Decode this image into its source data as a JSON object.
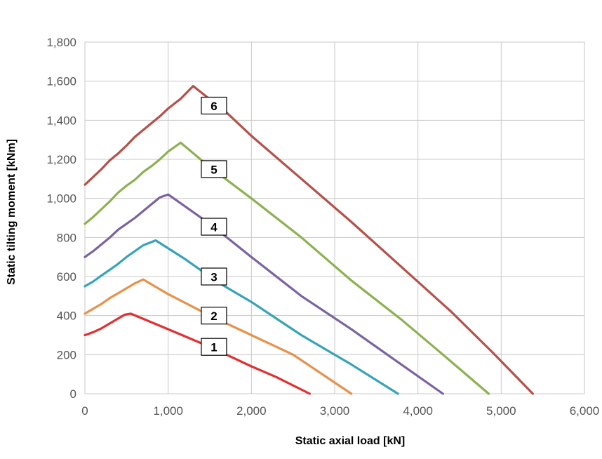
{
  "chart_data": {
    "type": "line",
    "xlabel": "Static axial load [kN]",
    "ylabel": "Static tilting moment [kNm]",
    "xlim": [
      0,
      6000
    ],
    "ylim": [
      0,
      1800
    ],
    "xticks": [
      0,
      1000,
      2000,
      3000,
      4000,
      5000,
      6000
    ],
    "yticks": [
      0,
      200,
      400,
      600,
      800,
      1000,
      1200,
      1400,
      1600,
      1800
    ],
    "xtick_labels": [
      "0",
      "1,000",
      "2,000",
      "3,000",
      "4,000",
      "5,000",
      "6,000"
    ],
    "ytick_labels": [
      "0",
      "200",
      "400",
      "600",
      "800",
      "1,000",
      "1,200",
      "1,400",
      "1,600",
      "1,800"
    ],
    "grid": true,
    "legend": "none",
    "colors": {
      "grid": "#c8c8c8",
      "frame": "#c8c8c8"
    },
    "series": [
      {
        "name": "1",
        "color": "#e03030",
        "label_point": [
          1550,
          240
        ],
        "points": [
          [
            0,
            300
          ],
          [
            100,
            315
          ],
          [
            200,
            335
          ],
          [
            300,
            360
          ],
          [
            400,
            385
          ],
          [
            480,
            405
          ],
          [
            550,
            410
          ],
          [
            1000,
            330
          ],
          [
            1500,
            240
          ],
          [
            2000,
            140
          ],
          [
            2300,
            85
          ],
          [
            2700,
            0
          ]
        ]
      },
      {
        "name": "2",
        "color": "#e8914a",
        "label_point": [
          1550,
          400
        ],
        "points": [
          [
            0,
            410
          ],
          [
            100,
            435
          ],
          [
            200,
            460
          ],
          [
            300,
            490
          ],
          [
            400,
            515
          ],
          [
            500,
            540
          ],
          [
            600,
            565
          ],
          [
            700,
            585
          ],
          [
            1000,
            510
          ],
          [
            1500,
            400
          ],
          [
            2000,
            300
          ],
          [
            2500,
            200
          ],
          [
            3200,
            0
          ]
        ]
      },
      {
        "name": "3",
        "color": "#36a3b8",
        "label_point": [
          1550,
          600
        ],
        "points": [
          [
            0,
            550
          ],
          [
            100,
            575
          ],
          [
            200,
            605
          ],
          [
            300,
            635
          ],
          [
            400,
            665
          ],
          [
            500,
            700
          ],
          [
            600,
            730
          ],
          [
            700,
            760
          ],
          [
            850,
            785
          ],
          [
            1200,
            690
          ],
          [
            1600,
            570
          ],
          [
            2000,
            470
          ],
          [
            2600,
            300
          ],
          [
            3200,
            150
          ],
          [
            3760,
            0
          ]
        ]
      },
      {
        "name": "4",
        "color": "#7b62a3",
        "label_point": [
          1550,
          855
        ],
        "points": [
          [
            0,
            700
          ],
          [
            100,
            730
          ],
          [
            200,
            765
          ],
          [
            300,
            800
          ],
          [
            400,
            840
          ],
          [
            500,
            870
          ],
          [
            600,
            900
          ],
          [
            700,
            935
          ],
          [
            800,
            970
          ],
          [
            900,
            1005
          ],
          [
            1000,
            1020
          ],
          [
            1500,
            870
          ],
          [
            2000,
            700
          ],
          [
            2600,
            500
          ],
          [
            3200,
            330
          ],
          [
            3800,
            150
          ],
          [
            4300,
            0
          ]
        ]
      },
      {
        "name": "5",
        "color": "#8cb150",
        "label_point": [
          1550,
          1150
        ],
        "points": [
          [
            0,
            870
          ],
          [
            100,
            905
          ],
          [
            200,
            945
          ],
          [
            300,
            985
          ],
          [
            400,
            1030
          ],
          [
            500,
            1065
          ],
          [
            600,
            1095
          ],
          [
            700,
            1135
          ],
          [
            800,
            1165
          ],
          [
            900,
            1200
          ],
          [
            1000,
            1240
          ],
          [
            1150,
            1285
          ],
          [
            1500,
            1160
          ],
          [
            2000,
            1000
          ],
          [
            2600,
            800
          ],
          [
            3200,
            580
          ],
          [
            3800,
            380
          ],
          [
            4300,
            200
          ],
          [
            4850,
            0
          ]
        ]
      },
      {
        "name": "6",
        "color": "#b5504a",
        "label_point": [
          1550,
          1475
        ],
        "points": [
          [
            0,
            1070
          ],
          [
            100,
            1110
          ],
          [
            200,
            1150
          ],
          [
            300,
            1195
          ],
          [
            400,
            1230
          ],
          [
            500,
            1270
          ],
          [
            600,
            1315
          ],
          [
            700,
            1350
          ],
          [
            800,
            1385
          ],
          [
            900,
            1420
          ],
          [
            1000,
            1460
          ],
          [
            1150,
            1510
          ],
          [
            1300,
            1575
          ],
          [
            1700,
            1440
          ],
          [
            2000,
            1320
          ],
          [
            2600,
            1100
          ],
          [
            3200,
            880
          ],
          [
            3800,
            650
          ],
          [
            4400,
            420
          ],
          [
            4900,
            210
          ],
          [
            5380,
            0
          ]
        ]
      }
    ]
  }
}
